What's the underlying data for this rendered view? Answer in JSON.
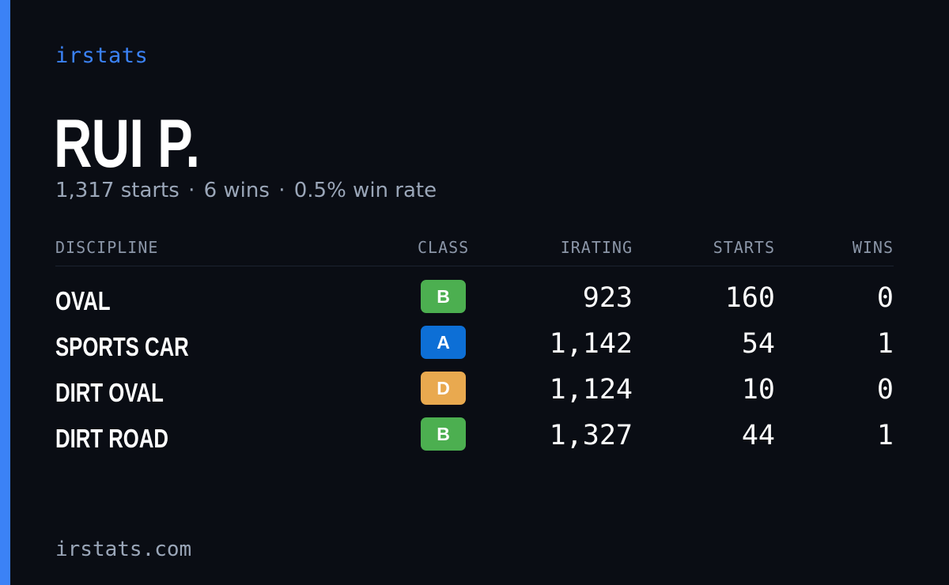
{
  "brand": "irstats",
  "player": {
    "name": "RUI P.",
    "starts_text": "1,317 starts",
    "wins_text": "6 wins",
    "winrate_text": "0.5% win rate",
    "separator": "·"
  },
  "table": {
    "headers": {
      "discipline": "DISCIPLINE",
      "class": "CLASS",
      "irating": "IRATING",
      "starts": "STARTS",
      "wins": "WINS"
    },
    "rows": [
      {
        "discipline": "OVAL",
        "class": "B",
        "class_color": "#4caf50",
        "irating": "923",
        "starts": "160",
        "wins": "0"
      },
      {
        "discipline": "SPORTS CAR",
        "class": "A",
        "class_color": "#0d6fd6",
        "irating": "1,142",
        "starts": "54",
        "wins": "1"
      },
      {
        "discipline": "DIRT OVAL",
        "class": "D",
        "class_color": "#e9a94f",
        "irating": "1,124",
        "starts": "10",
        "wins": "0"
      },
      {
        "discipline": "DIRT ROAD",
        "class": "B",
        "class_color": "#4caf50",
        "irating": "1,327",
        "starts": "44",
        "wins": "1"
      }
    ]
  },
  "footer": "irstats.com",
  "colors": {
    "background": "#0a0d14",
    "accent": "#3b82f6",
    "muted_text": "#9aa6b8",
    "header_text": "#8b96a8"
  }
}
